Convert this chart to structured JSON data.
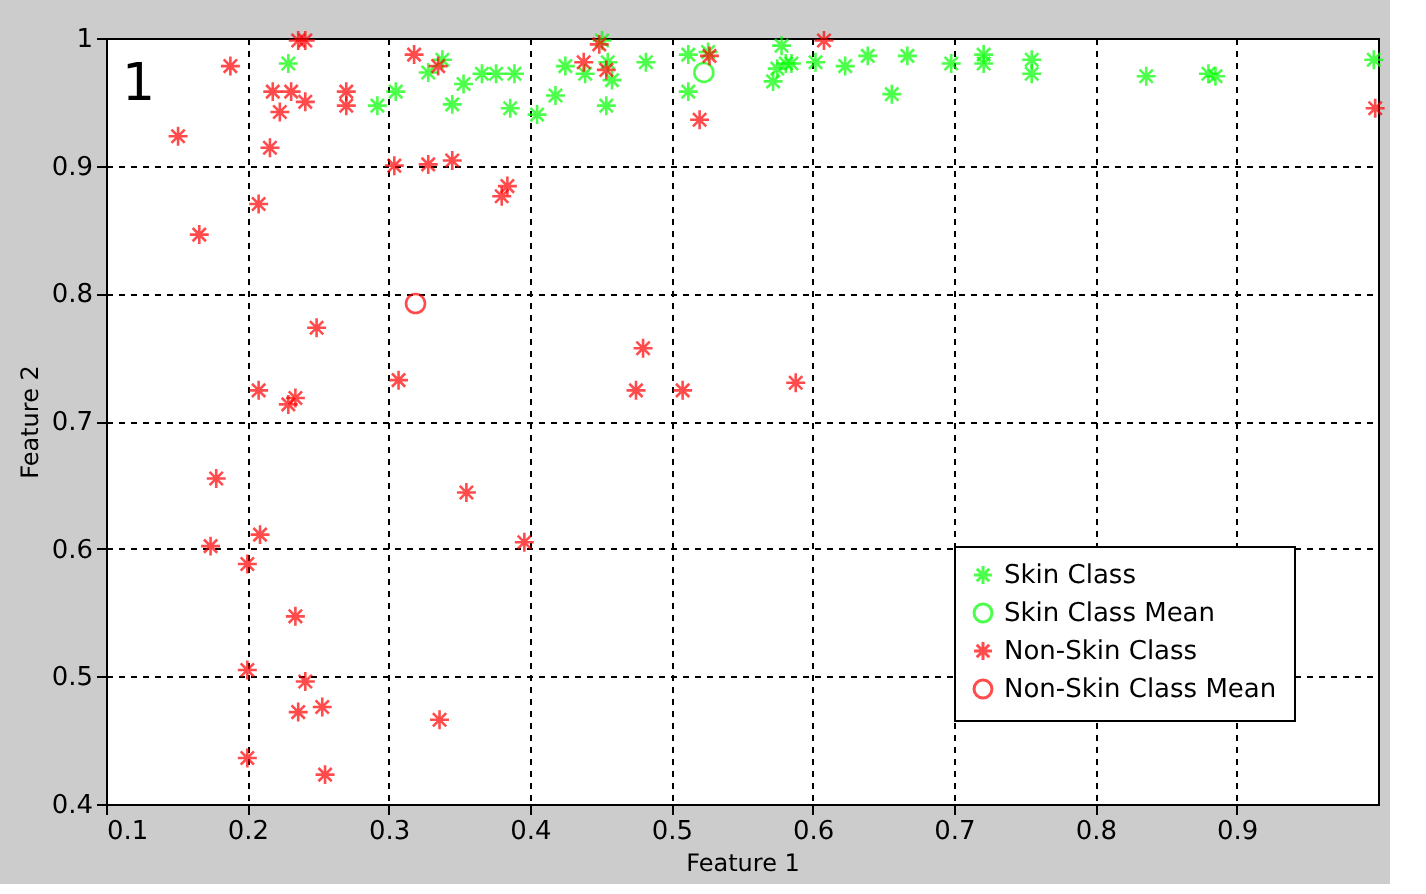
{
  "chart_data": {
    "type": "scatter",
    "xlabel": "Feature 1",
    "ylabel": "Feature 2",
    "annotations": [
      "1"
    ],
    "xlim": [
      0.1,
      1.0
    ],
    "ylim": [
      0.4,
      1
    ],
    "xticks": [
      0.1,
      0.2,
      0.3,
      0.4,
      0.5,
      0.6,
      0.7,
      0.8,
      0.9
    ],
    "yticks": [
      0.4,
      0.5,
      0.6,
      0.7,
      0.8,
      0.9,
      1
    ],
    "grid": true,
    "legend": "bottom right",
    "series": [
      {
        "name": "Skin Class",
        "color": "#00ff00",
        "marker": "cross",
        "x": [
          0.229,
          0.292,
          0.305,
          0.328,
          0.338,
          0.345,
          0.353,
          0.366,
          0.376,
          0.389,
          0.386,
          0.405,
          0.418,
          0.425,
          0.439,
          0.451,
          0.455,
          0.458,
          0.454,
          0.482,
          0.512,
          0.526,
          0.512,
          0.578,
          0.575,
          0.581,
          0.572,
          0.585,
          0.602,
          0.623,
          0.639,
          0.656,
          0.667,
          0.698,
          0.721,
          0.721,
          0.755,
          0.755,
          0.836,
          0.88,
          0.885,
          0.997
        ],
        "values": [
          0.98,
          0.947,
          0.958,
          0.973,
          0.983,
          0.948,
          0.964,
          0.972,
          0.972,
          0.972,
          0.945,
          0.94,
          0.955,
          0.978,
          0.972,
          0.998,
          0.981,
          0.967,
          0.947,
          0.981,
          0.987,
          0.989,
          0.958,
          0.994,
          0.976,
          0.98,
          0.966,
          0.98,
          0.981,
          0.978,
          0.986,
          0.956,
          0.986,
          0.98,
          0.987,
          0.98,
          0.983,
          0.972,
          0.97,
          0.972,
          0.97,
          0.983
        ]
      },
      {
        "name": "Skin Class Mean",
        "color": "#00ff00",
        "marker": "circle",
        "x": [
          0.523
        ],
        "values": [
          0.973
        ]
      },
      {
        "name": "Non-Skin Class",
        "color": "#ff0000",
        "marker": "cross",
        "x": [
          0.151,
          0.166,
          0.188,
          0.208,
          0.216,
          0.218,
          0.223,
          0.231,
          0.236,
          0.241,
          0.241,
          0.27,
          0.27,
          0.304,
          0.318,
          0.328,
          0.345,
          0.335,
          0.384,
          0.38,
          0.438,
          0.449,
          0.454,
          0.527,
          0.52,
          0.608,
          0.998,
          0.249,
          0.208,
          0.234,
          0.229,
          0.307,
          0.48,
          0.475,
          0.508,
          0.588,
          0.178,
          0.355,
          0.209,
          0.174,
          0.396,
          0.2,
          0.234,
          0.2,
          0.241,
          0.236,
          0.253,
          0.336,
          0.2,
          0.255
        ],
        "values": [
          0.923,
          0.846,
          0.978,
          0.87,
          0.914,
          0.958,
          0.942,
          0.958,
          0.998,
          0.998,
          0.95,
          0.958,
          0.947,
          0.9,
          0.987,
          0.901,
          0.904,
          0.978,
          0.884,
          0.876,
          0.981,
          0.995,
          0.975,
          0.986,
          0.936,
          0.998,
          0.945,
          0.773,
          0.724,
          0.718,
          0.713,
          0.732,
          0.757,
          0.724,
          0.724,
          0.73,
          0.655,
          0.644,
          0.611,
          0.602,
          0.605,
          0.588,
          0.547,
          0.505,
          0.496,
          0.472,
          0.476,
          0.466,
          0.436,
          0.423
        ]
      },
      {
        "name": "Non-Skin Class Mean",
        "color": "#ff0000",
        "marker": "circle",
        "x": [
          0.319
        ],
        "values": [
          0.792
        ]
      }
    ]
  }
}
